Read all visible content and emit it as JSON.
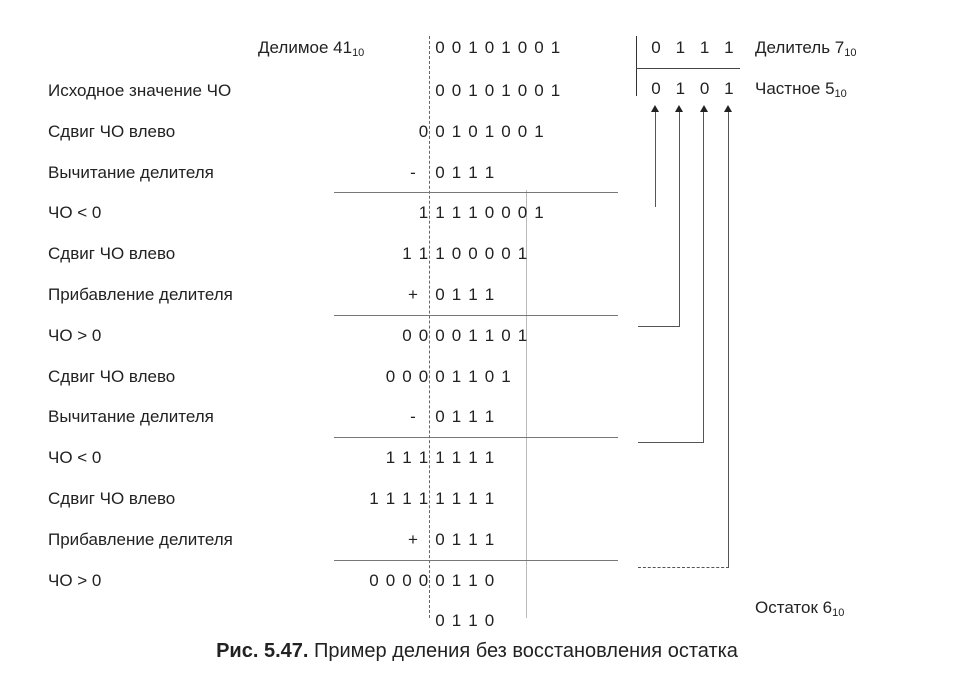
{
  "header": {
    "dividend_label": "Делимое 41",
    "dividend_sub": "10",
    "dividend_bits": [
      "0",
      "0",
      "1",
      "0",
      "1",
      "0",
      "0",
      "1"
    ],
    "divisor_bits": [
      "0",
      "1",
      "1",
      "1"
    ],
    "divisor_label": "Делитель 7",
    "divisor_sub": "10",
    "quotient_bits": [
      "0",
      "1",
      "0",
      "1"
    ],
    "quotient_label": "Частное 5",
    "quotient_sub": "10"
  },
  "steps": [
    {
      "label": "Исходное значение ЧО",
      "op": "",
      "bits": "00101001",
      "start": 0
    },
    {
      "label": "Сдвиг ЧО влево",
      "op": "",
      "bits": "00101001",
      "start": -1
    },
    {
      "label": "Вычитание делителя",
      "op": "-",
      "bits": "0111",
      "start": 0
    },
    {
      "label": "ЧО < 0",
      "op": "",
      "bits": "11110001",
      "start": -1
    },
    {
      "label": "Сдвиг ЧО влево",
      "op": "",
      "bits": "11100001",
      "start": -2
    },
    {
      "label": "Прибавление делителя",
      "op": "+",
      "bits": "0111",
      "start": 0
    },
    {
      "label": "ЧО > 0",
      "op": "",
      "bits": "00001101",
      "start": -2
    },
    {
      "label": "Сдвиг ЧО влево",
      "op": "",
      "bits": "00001101",
      "start": -3
    },
    {
      "label": "Вычитание делителя",
      "op": "-",
      "bits": "0111",
      "start": 0
    },
    {
      "label": "ЧО < 0",
      "op": "",
      "bits": "1111111",
      "start": -3
    },
    {
      "label": "Сдвиг ЧО влево",
      "op": "",
      "bits": "11111111",
      "start": -4
    },
    {
      "label": "Прибавление делителя",
      "op": "+",
      "bits": "0111",
      "start": 0
    },
    {
      "label": "ЧО > 0",
      "op": "",
      "bits": "00000110",
      "start": -4
    },
    {
      "label": "",
      "op": "",
      "bits": "0110",
      "start": 0
    }
  ],
  "remainder_label": "Остаток 6",
  "remainder_sub": "10",
  "caption": {
    "number": "Рис. 5.47.",
    "text": " Пример деления без восстановления остатка"
  }
}
